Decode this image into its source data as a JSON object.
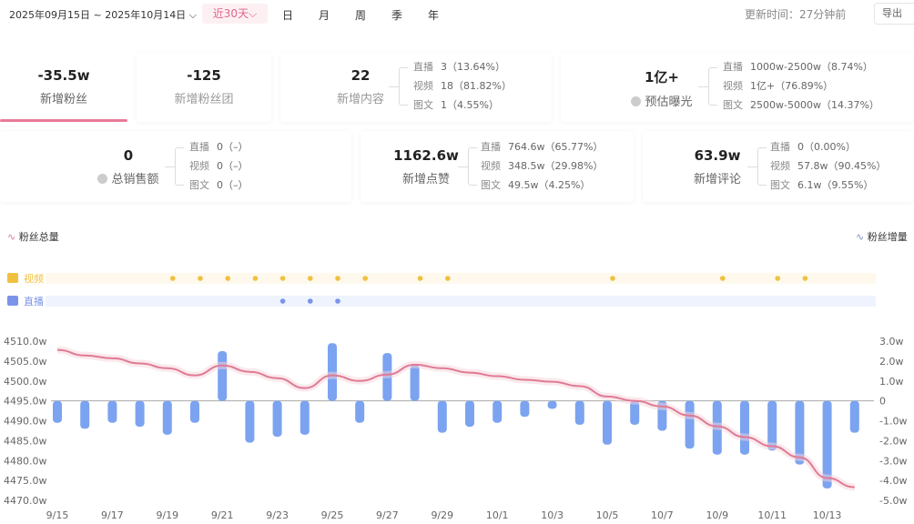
{
  "header": {
    "date_range": "2025年09月15日 ~ 2025年10月14日",
    "preset": "近30天",
    "granularity": [
      "日",
      "月",
      "周",
      "季",
      "年"
    ],
    "update_time": "更新时间：27分钟前",
    "export_label": "导出"
  },
  "metrics_row1": [
    {
      "value": "-35.5w",
      "label": "新增粉丝",
      "selected": true
    },
    {
      "value": "-125",
      "label": "新增粉丝团"
    },
    {
      "value": "22",
      "label": "新增内容",
      "breakdown": [
        {
          "k": "直播",
          "v": "3（13.64%）"
        },
        {
          "k": "视频",
          "v": "18（81.82%）"
        },
        {
          "k": "图文",
          "v": "1（4.55%）"
        }
      ]
    },
    {
      "value": "1亿+",
      "label": "预估曝光",
      "help": true,
      "breakdown": [
        {
          "k": "直播",
          "v": "1000w-2500w（8.74%）"
        },
        {
          "k": "视频",
          "v": "1亿+（76.89%）"
        },
        {
          "k": "图文",
          "v": "2500w-5000w（14.37%）"
        }
      ]
    }
  ],
  "metrics_row2": [
    {
      "value": "0",
      "label": "总销售额",
      "help": true,
      "breakdown": [
        {
          "k": "直播",
          "v": "0（–）"
        },
        {
          "k": "视频",
          "v": "0（–）"
        },
        {
          "k": "图文",
          "v": "0（–）"
        }
      ]
    },
    {
      "value": "1162.6w",
      "label": "新增点赞",
      "breakdown": [
        {
          "k": "直播",
          "v": "764.6w（65.77%）"
        },
        {
          "k": "视频",
          "v": "348.5w（29.98%）"
        },
        {
          "k": "图文",
          "v": "49.5w（4.25%）"
        }
      ]
    },
    {
      "value": "63.9w",
      "label": "新增评论",
      "breakdown": [
        {
          "k": "直播",
          "v": "0（0.00%）"
        },
        {
          "k": "视频",
          "v": "57.8w（90.45%）"
        },
        {
          "k": "图文",
          "v": "6.1w（9.55%）"
        }
      ]
    }
  ],
  "colors": {
    "accent": "#e0658a",
    "line": "#e07a93",
    "bar": "#7ba3f0",
    "video": "#f0c040",
    "live": "#7b93e8"
  },
  "chart_data": {
    "type": "bar+line",
    "legend": {
      "left": "粉丝总量",
      "right": "粉丝增量"
    },
    "tracks": [
      {
        "name": "视频",
        "dates": [
          "9/19",
          "9/20",
          "9/21",
          "9/22",
          "9/23",
          "9/24",
          "9/25",
          "9/26",
          "9/28",
          "9/29",
          "10/5",
          "10/9",
          "10/11",
          "10/12"
        ]
      },
      {
        "name": "直播",
        "dates": [
          "9/23",
          "9/24",
          "9/25"
        ]
      }
    ],
    "categories": [
      "9/15",
      "9/16",
      "9/17",
      "9/18",
      "9/19",
      "9/20",
      "9/21",
      "9/22",
      "9/23",
      "9/24",
      "9/25",
      "9/26",
      "9/27",
      "9/28",
      "9/29",
      "9/30",
      "10/1",
      "10/2",
      "10/3",
      "10/4",
      "10/5",
      "10/6",
      "10/7",
      "10/8",
      "10/9",
      "10/10",
      "10/11",
      "10/12",
      "10/13",
      "10/14"
    ],
    "xtick_labels": [
      "9/15",
      "9/17",
      "9/19",
      "9/21",
      "9/23",
      "9/25",
      "9/27",
      "9/29",
      "10/1",
      "10/3",
      "10/5",
      "10/7",
      "10/9",
      "10/11",
      "10/13"
    ],
    "y_left": {
      "ticks": [
        "4510.0w",
        "4505.0w",
        "4500.0w",
        "4495.0w",
        "4490.0w",
        "4485.0w",
        "4480.0w",
        "4475.0w",
        "4470.0w"
      ],
      "range": [
        4470,
        4510
      ]
    },
    "y_right": {
      "ticks": [
        "3.0w",
        "2.0w",
        "1.0w",
        "0",
        "-1.0w",
        "-2.0w",
        "-3.0w",
        "-4.0w",
        "-5.0w"
      ],
      "range": [
        -5,
        3
      ]
    },
    "series": [
      {
        "name": "粉丝总量",
        "type": "line",
        "axis": "left",
        "values": [
          4507.8,
          4506.4,
          4505.7,
          4504.4,
          4503.2,
          4501.4,
          4503.9,
          4502.3,
          4500.7,
          4498.2,
          4501.4,
          4500.0,
          4501.6,
          4504.1,
          4503.2,
          4502.1,
          4501.2,
          4500.3,
          4499.8,
          4498.7,
          4496.1,
          4495.0,
          4493.6,
          4491.3,
          4488.6,
          4485.9,
          4483.6,
          4480.8,
          4475.6,
          4473.3
        ]
      },
      {
        "name": "粉丝增量",
        "type": "bar",
        "axis": "right",
        "values": [
          -1.1,
          -1.4,
          -1.1,
          -1.3,
          -1.7,
          -1.1,
          2.5,
          -2.1,
          -1.8,
          -1.7,
          2.9,
          -1.1,
          2.4,
          1.8,
          -1.6,
          -1.3,
          -1.1,
          -0.8,
          -0.4,
          -1.2,
          -2.2,
          -1.2,
          -1.5,
          -2.4,
          -2.7,
          -2.7,
          -2.5,
          -3.2,
          -4.4,
          -1.6
        ]
      }
    ]
  }
}
